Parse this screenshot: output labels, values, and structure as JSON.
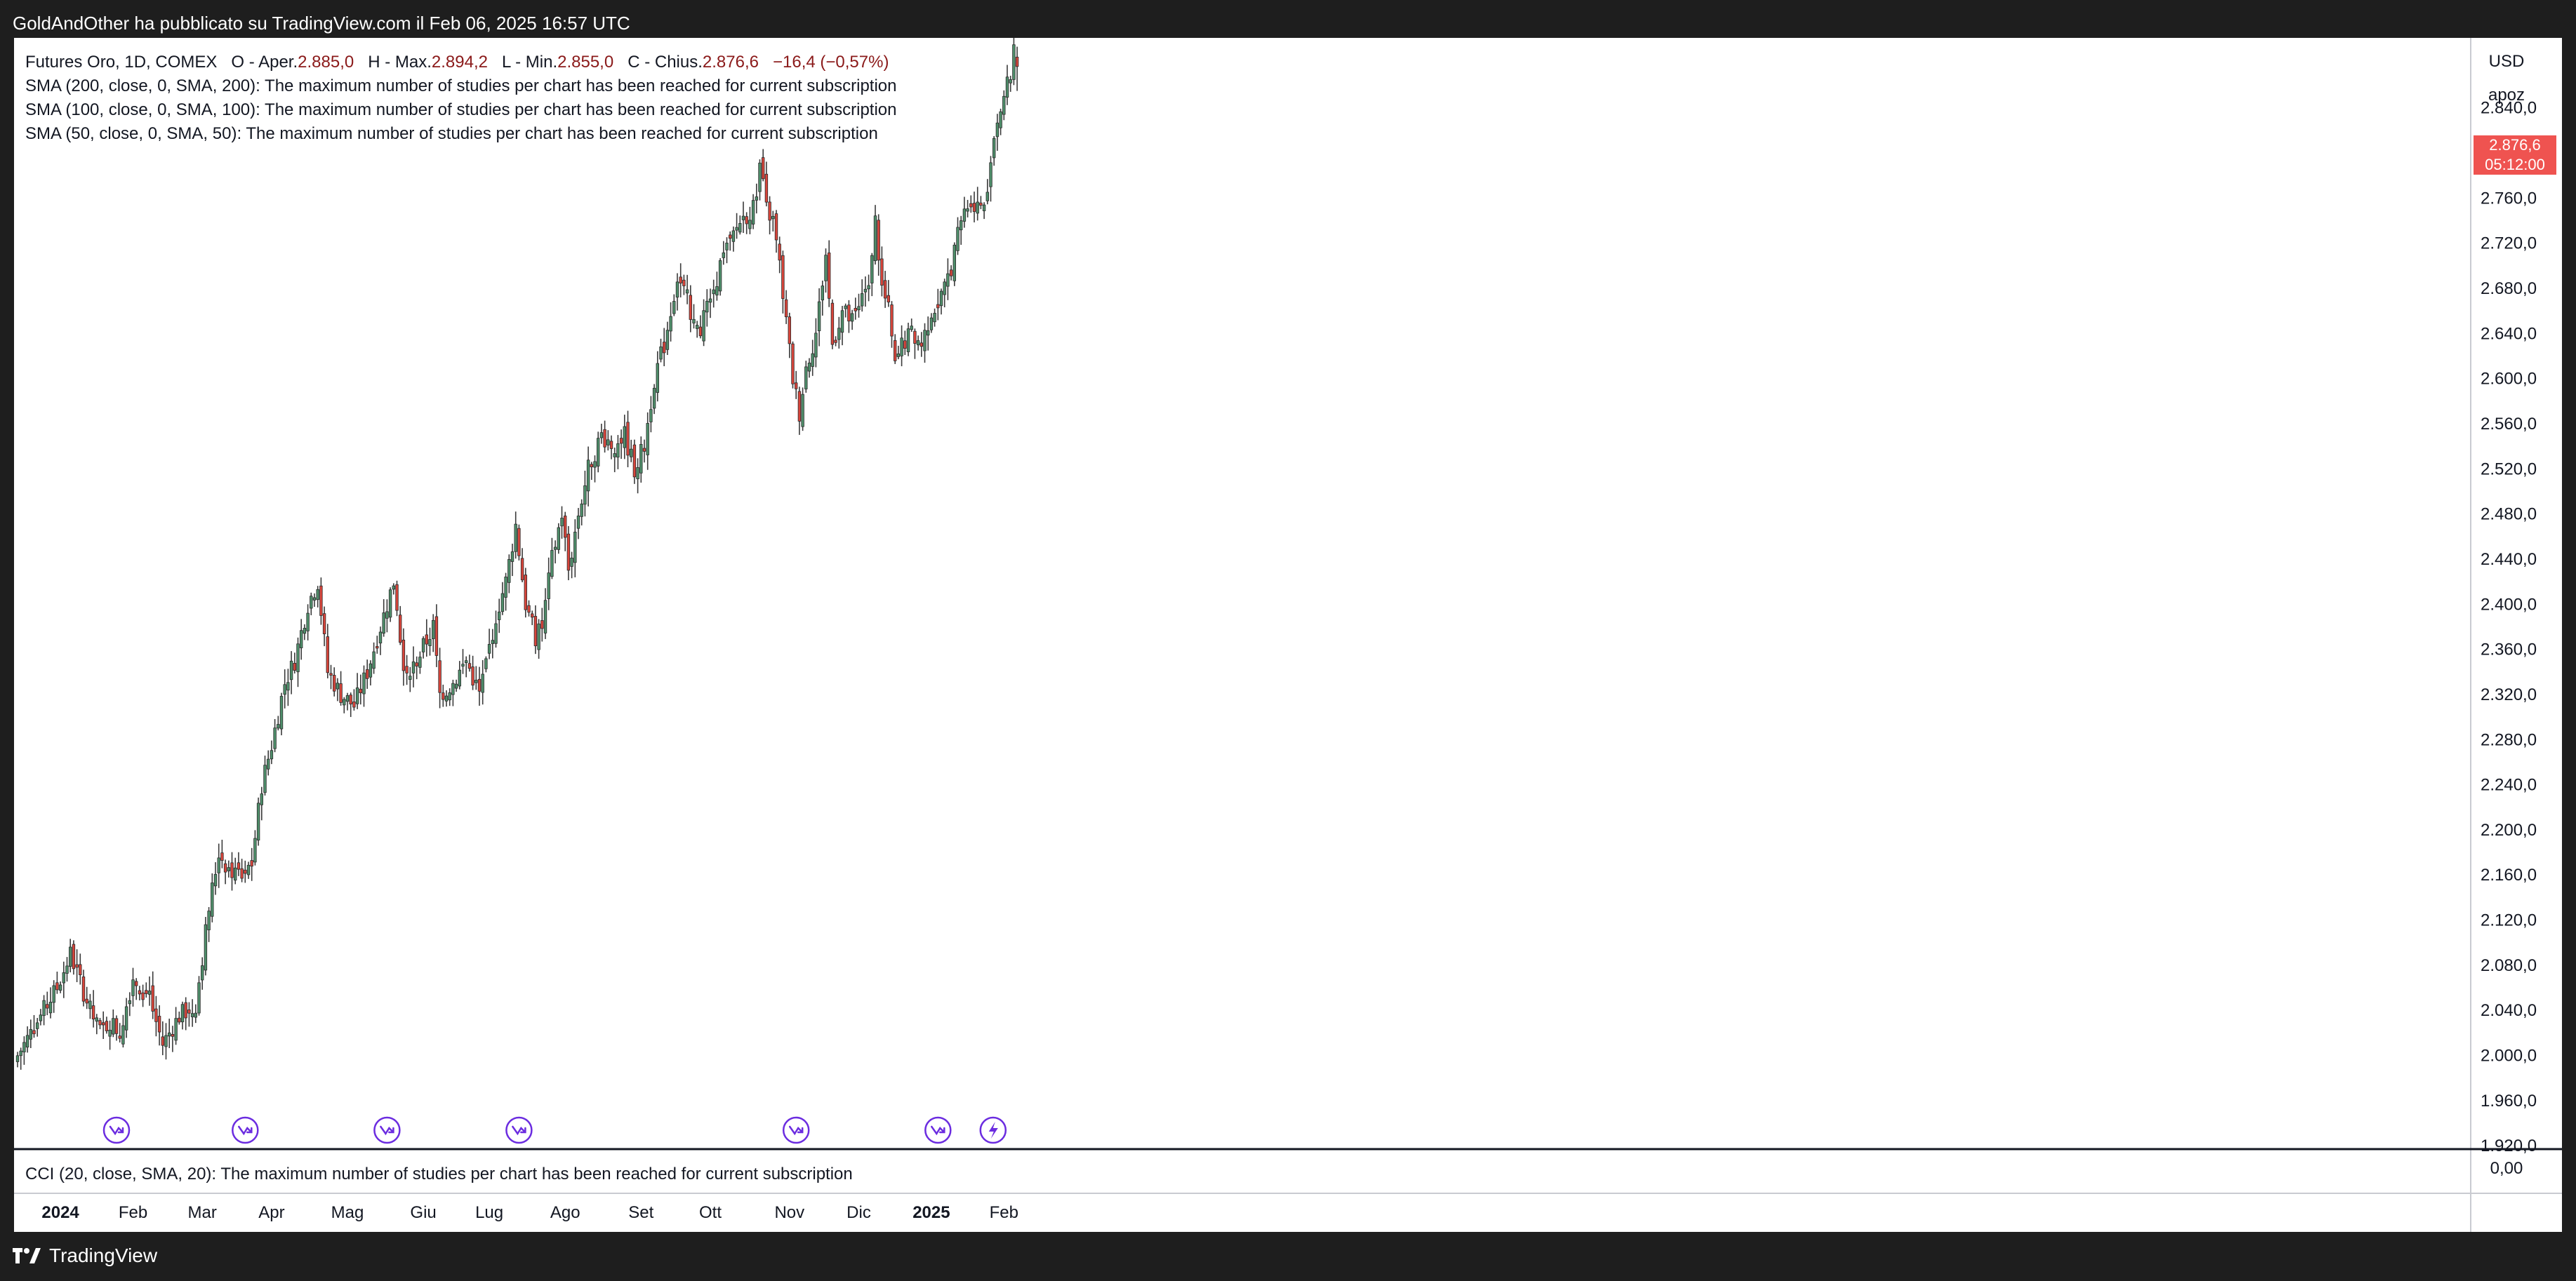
{
  "header": {
    "publish_line": "GoldAndOther ha pubblicato su TradingView.com il Feb 06, 2025 16:57 UTC"
  },
  "legend": {
    "symbol": "Futures Oro, 1D, COMEX",
    "open_label": "O - Aper.",
    "open_value": "2.885,0",
    "high_label": "H - Max.",
    "high_value": "2.894,2",
    "low_label": "L - Min.",
    "low_value": "2.855,0",
    "close_label": "C - Chius.",
    "close_value": "2.876,6",
    "change": "−16,4 (−0,57%)",
    "studies": [
      "SMA (200, close, 0, SMA, 200): The maximum number of studies per chart has been reached for current subscription",
      "SMA (100, close, 0, SMA, 100): The maximum number of studies per chart has been reached for current subscription",
      "SMA (50, close, 0, SMA, 50): The maximum number of studies per chart has been reached for current subscription"
    ]
  },
  "price_axis": {
    "currency": "USD",
    "mode": "apoz",
    "last_price": "2.876,6",
    "countdown": "05:12:00"
  },
  "cci": {
    "label": "CCI (20, close, SMA, 20): The maximum number of studies per chart has been reached for current subscription",
    "axis_value": "0,00"
  },
  "footer": {
    "brand": "TradingView"
  },
  "colors": {
    "up": "#4f8f6b",
    "down": "#d9453b",
    "last_price_badge": "#ef5350",
    "event_marker": "#6b2ce0"
  },
  "chart_data": {
    "type": "candlestick",
    "y_ticks": [
      1920,
      1960,
      2000,
      2040,
      2080,
      2120,
      2160,
      2200,
      2240,
      2280,
      2320,
      2360,
      2400,
      2440,
      2480,
      2520,
      2560,
      2600,
      2640,
      2680,
      2720,
      2760,
      2800,
      2840
    ],
    "y_tick_labels": [
      "1.920,0",
      "1.960,0",
      "2.000,0",
      "2.040,0",
      "2.080,0",
      "2.120,0",
      "2.160,0",
      "2.200,0",
      "2.240,0",
      "2.280,0",
      "2.320,0",
      "2.360,0",
      "2.400,0",
      "2.440,0",
      "2.480,0",
      "2.520,0",
      "2.560,0",
      "2.600,0",
      "2.640,0",
      "2.680,0",
      "2.720,0",
      "2.760,0",
      "2.800,0",
      "2.840,0"
    ],
    "ylim": [
      1917,
      2902
    ],
    "x_ticks": [
      {
        "label": "2024",
        "bar": 13,
        "bold": true
      },
      {
        "label": "Feb",
        "bar": 35
      },
      {
        "label": "Mar",
        "bar": 56
      },
      {
        "label": "Apr",
        "bar": 77
      },
      {
        "label": "Mag",
        "bar": 100
      },
      {
        "label": "Giu",
        "bar": 123
      },
      {
        "label": "Lug",
        "bar": 143
      },
      {
        "label": "Ago",
        "bar": 166
      },
      {
        "label": "Set",
        "bar": 189
      },
      {
        "label": "Ott",
        "bar": 210
      },
      {
        "label": "Nov",
        "bar": 234
      },
      {
        "label": "Dic",
        "bar": 255
      },
      {
        "label": "2025",
        "bar": 277,
        "bold": true
      },
      {
        "label": "Feb",
        "bar": 299
      }
    ],
    "bar_count": 304,
    "anchors": [
      {
        "bar": 0,
        "close": 2000
      },
      {
        "bar": 8,
        "close": 2040
      },
      {
        "bar": 12,
        "close": 2060
      },
      {
        "bar": 16,
        "close": 2090
      },
      {
        "bar": 22,
        "close": 2040
      },
      {
        "bar": 25,
        "close": 2020
      },
      {
        "bar": 28,
        "close": 2030
      },
      {
        "bar": 31,
        "close": 2020
      },
      {
        "bar": 35,
        "close": 2070
      },
      {
        "bar": 40,
        "close": 2050
      },
      {
        "bar": 44,
        "close": 2010
      },
      {
        "bar": 49,
        "close": 2035
      },
      {
        "bar": 54,
        "close": 2045
      },
      {
        "bar": 58,
        "close": 2130
      },
      {
        "bar": 61,
        "close": 2180
      },
      {
        "bar": 64,
        "close": 2165
      },
      {
        "bar": 68,
        "close": 2160
      },
      {
        "bar": 71,
        "close": 2170
      },
      {
        "bar": 74,
        "close": 2240
      },
      {
        "bar": 77,
        "close": 2275
      },
      {
        "bar": 81,
        "close": 2330
      },
      {
        "bar": 84,
        "close": 2350
      },
      {
        "bar": 88,
        "close": 2400
      },
      {
        "bar": 91,
        "close": 2420
      },
      {
        "bar": 94,
        "close": 2340
      },
      {
        "bar": 98,
        "close": 2320
      },
      {
        "bar": 102,
        "close": 2310
      },
      {
        "bar": 106,
        "close": 2340
      },
      {
        "bar": 111,
        "close": 2390
      },
      {
        "bar": 114,
        "close": 2420
      },
      {
        "bar": 117,
        "close": 2340
      },
      {
        "bar": 121,
        "close": 2350
      },
      {
        "bar": 126,
        "close": 2380
      },
      {
        "bar": 128,
        "close": 2320
      },
      {
        "bar": 132,
        "close": 2330
      },
      {
        "bar": 136,
        "close": 2350
      },
      {
        "bar": 140,
        "close": 2320
      },
      {
        "bar": 145,
        "close": 2390
      },
      {
        "bar": 148,
        "close": 2420
      },
      {
        "bar": 151,
        "close": 2470
      },
      {
        "bar": 154,
        "close": 2400
      },
      {
        "bar": 157,
        "close": 2370
      },
      {
        "bar": 159,
        "close": 2380
      },
      {
        "bar": 162,
        "close": 2440
      },
      {
        "bar": 165,
        "close": 2480
      },
      {
        "bar": 167,
        "close": 2430
      },
      {
        "bar": 170,
        "close": 2480
      },
      {
        "bar": 173,
        "close": 2520
      },
      {
        "bar": 177,
        "close": 2550
      },
      {
        "bar": 181,
        "close": 2540
      },
      {
        "bar": 184,
        "close": 2550
      },
      {
        "bar": 187,
        "close": 2520
      },
      {
        "bar": 190,
        "close": 2540
      },
      {
        "bar": 193,
        "close": 2600
      },
      {
        "bar": 196,
        "close": 2630
      },
      {
        "bar": 200,
        "close": 2690
      },
      {
        "bar": 203,
        "close": 2670
      },
      {
        "bar": 206,
        "close": 2640
      },
      {
        "bar": 209,
        "close": 2660
      },
      {
        "bar": 213,
        "close": 2700
      },
      {
        "bar": 216,
        "close": 2720
      },
      {
        "bar": 219,
        "close": 2740
      },
      {
        "bar": 223,
        "close": 2750
      },
      {
        "bar": 225,
        "close": 2790
      },
      {
        "bar": 227,
        "close": 2750
      },
      {
        "bar": 229,
        "close": 2740
      },
      {
        "bar": 231,
        "close": 2700
      },
      {
        "bar": 233,
        "close": 2650
      },
      {
        "bar": 235,
        "close": 2600
      },
      {
        "bar": 237,
        "close": 2570
      },
      {
        "bar": 239,
        "close": 2610
      },
      {
        "bar": 242,
        "close": 2640
      },
      {
        "bar": 245,
        "close": 2710
      },
      {
        "bar": 247,
        "close": 2630
      },
      {
        "bar": 250,
        "close": 2660
      },
      {
        "bar": 253,
        "close": 2650
      },
      {
        "bar": 255,
        "close": 2660
      },
      {
        "bar": 258,
        "close": 2690
      },
      {
        "bar": 260,
        "close": 2740
      },
      {
        "bar": 262,
        "close": 2680
      },
      {
        "bar": 264,
        "close": 2660
      },
      {
        "bar": 266,
        "close": 2610
      },
      {
        "bar": 268,
        "close": 2630
      },
      {
        "bar": 271,
        "close": 2640
      },
      {
        "bar": 274,
        "close": 2630
      },
      {
        "bar": 277,
        "close": 2660
      },
      {
        "bar": 280,
        "close": 2670
      },
      {
        "bar": 283,
        "close": 2700
      },
      {
        "bar": 286,
        "close": 2740
      },
      {
        "bar": 289,
        "close": 2760
      },
      {
        "bar": 292,
        "close": 2750
      },
      {
        "bar": 294,
        "close": 2760
      },
      {
        "bar": 295,
        "close": 2800
      },
      {
        "bar": 297,
        "close": 2830
      },
      {
        "bar": 299,
        "close": 2850
      },
      {
        "bar": 301,
        "close": 2870
      },
      {
        "bar": 302,
        "close": 2893
      },
      {
        "bar": 303,
        "close": 2876.6
      }
    ],
    "last_bar": {
      "open": 2885.0,
      "high": 2894.2,
      "low": 2855.0,
      "close": 2876.6
    },
    "event_markers": [
      {
        "bar": 30,
        "type": "dividend"
      },
      {
        "bar": 69,
        "type": "dividend"
      },
      {
        "bar": 112,
        "type": "dividend"
      },
      {
        "bar": 152,
        "type": "dividend"
      },
      {
        "bar": 236,
        "type": "dividend"
      },
      {
        "bar": 279,
        "type": "dividend"
      },
      {
        "bar": 284,
        "type": "split"
      }
    ],
    "grid": false
  }
}
